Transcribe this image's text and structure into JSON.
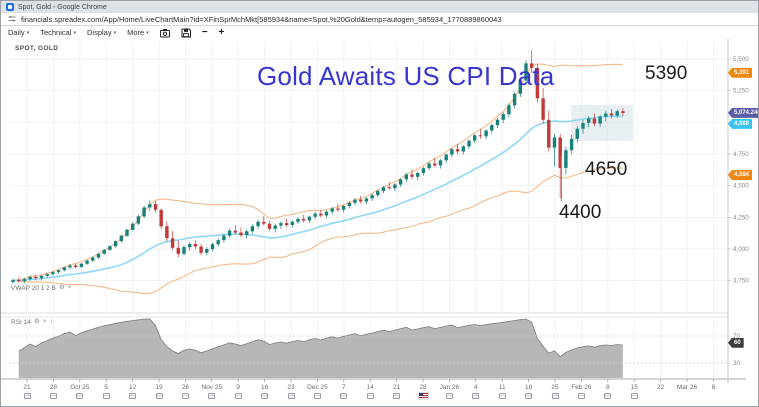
{
  "window": {
    "title": "Spot, Gold - Google Chrome"
  },
  "browser": {
    "url": "financials.spreadex.com/App/Home/LiveChartMain?id=XFinSprMchMkt[585934&name=Spot,%20Gold&temp=autogen_585934_1770889860043"
  },
  "toolbar": {
    "menus": [
      "Daily",
      "Technical",
      "Display",
      "More"
    ],
    "caret": "▾",
    "zoom_out": "−",
    "zoom_in": "+"
  },
  "icons": {
    "gear": "⚙",
    "close": "×",
    "up_arrow": "↑"
  },
  "chart": {
    "symbol_label": "SPOT, GOLD",
    "overlay_label": "VWAP 20 1 2 B",
    "rsi_label": "RSI 14",
    "annotations": {
      "headline": "Gold Awaits US CPI Data",
      "level_top": "5390",
      "level_mid": "4650",
      "level_low": "4400"
    },
    "price_axis": {
      "ticks": [
        "5,500",
        "5,250",
        "5,000",
        "4,750",
        "4,500",
        "4,250",
        "4,000",
        "3,750"
      ],
      "tick_values": [
        5500,
        5250,
        5000,
        4750,
        4500,
        4250,
        4000,
        3750
      ],
      "tags": [
        {
          "name": "upper-band-tag",
          "label": "5,391",
          "value": 5391,
          "color": "#f0860e"
        },
        {
          "name": "last-price-tag",
          "label": "5,074.240",
          "value": 5074.24,
          "color": "#5a5caa"
        },
        {
          "name": "mid-band-tag",
          "label": "4,988",
          "value": 4988,
          "color": "#38c4ef"
        },
        {
          "name": "lower-band-tag",
          "label": "4,584",
          "value": 4584,
          "color": "#f0860e"
        }
      ]
    },
    "time_axis": {
      "ticks": [
        "21",
        "28",
        "Oct 25",
        "5",
        "12",
        "19",
        "26",
        "Nov 25",
        "9",
        "16",
        "23",
        "Dec 25",
        "7",
        "14",
        "21",
        "28",
        "Jan 26",
        "4",
        "11",
        "18",
        "25",
        "Feb 26",
        "8",
        "15",
        "22",
        "Mar 26",
        "8"
      ],
      "flag_index": 15,
      "calendar_icon_last_index": 23
    },
    "rsi_axis": {
      "ticks": [
        "70",
        "30"
      ],
      "tick_values": [
        70,
        30
      ],
      "tag": {
        "label": "60",
        "value": 60,
        "color": "#3d3d3d"
      }
    },
    "colors": {
      "bull": "#17817a",
      "bear": "#c03a3a",
      "band": "#f4b47e",
      "mid_line": "#8ed8f4",
      "rsi_fill": "#b3b3b3",
      "rsi_stroke": "#7d7d7d",
      "headline": "#3737cf",
      "grid": "#ededed",
      "box": "#cfe0e8"
    }
  },
  "chart_data": {
    "type": "candlestick",
    "symbol": "SPOT, GOLD",
    "timeframe": "Daily",
    "price_axis_range": [
      3750,
      5500
    ],
    "x_tick_labels": [
      "21",
      "28",
      "Oct 25",
      "5",
      "12",
      "19",
      "26",
      "Nov 25",
      "9",
      "16",
      "23",
      "Dec 25",
      "7",
      "14",
      "21",
      "28",
      "Jan 26",
      "4",
      "11",
      "18",
      "25",
      "Feb 26",
      "8",
      "15",
      "22",
      "Mar 26",
      "8"
    ],
    "rsi_axis_ticks": [
      70,
      30
    ],
    "last_price": 5074.24,
    "upper_band": 5391,
    "middle_band": 4988,
    "lower_band": 4584,
    "annotation_texts": [
      "Gold Awaits US CPI Data",
      "5390",
      "4650",
      "4400"
    ],
    "indicators": [
      {
        "name": "VWAP Bands",
        "period": 20,
        "multiplier": 2
      },
      {
        "name": "RSI",
        "period": 14
      }
    ],
    "candles_ohlc": [
      [
        3740,
        3765,
        3725,
        3755
      ],
      [
        3755,
        3775,
        3735,
        3748
      ],
      [
        3748,
        3772,
        3730,
        3762
      ],
      [
        3762,
        3790,
        3750,
        3780
      ],
      [
        3780,
        3800,
        3758,
        3770
      ],
      [
        3770,
        3795,
        3752,
        3788
      ],
      [
        3788,
        3810,
        3776,
        3802
      ],
      [
        3802,
        3825,
        3790,
        3818
      ],
      [
        3818,
        3840,
        3805,
        3832
      ],
      [
        3832,
        3860,
        3825,
        3855
      ],
      [
        3855,
        3880,
        3840,
        3870
      ],
      [
        3870,
        3885,
        3845,
        3858
      ],
      [
        3858,
        3890,
        3852,
        3884
      ],
      [
        3884,
        3915,
        3875,
        3908
      ],
      [
        3908,
        3940,
        3898,
        3932
      ],
      [
        3932,
        3970,
        3922,
        3962
      ],
      [
        3962,
        4000,
        3955,
        3993
      ],
      [
        3993,
        4030,
        3985,
        4022
      ],
      [
        4022,
        4070,
        4010,
        4062
      ],
      [
        4062,
        4115,
        4050,
        4105
      ],
      [
        4105,
        4160,
        4095,
        4152
      ],
      [
        4152,
        4210,
        4140,
        4200
      ],
      [
        4200,
        4270,
        4190,
        4258
      ],
      [
        4258,
        4340,
        4245,
        4328
      ],
      [
        4328,
        4385,
        4300,
        4355
      ],
      [
        4355,
        4380,
        4290,
        4310
      ],
      [
        4310,
        4320,
        4160,
        4180
      ],
      [
        4180,
        4220,
        4060,
        4085
      ],
      [
        4085,
        4140,
        3990,
        4010
      ],
      [
        4010,
        4070,
        3935,
        3962
      ],
      [
        3962,
        4030,
        3950,
        4015
      ],
      [
        4015,
        4055,
        3985,
        4040
      ],
      [
        4040,
        4070,
        4000,
        4020
      ],
      [
        4020,
        4040,
        3952,
        3970
      ],
      [
        3970,
        4015,
        3950,
        4000
      ],
      [
        4000,
        4050,
        3980,
        4038
      ],
      [
        4038,
        4085,
        4020,
        4070
      ],
      [
        4070,
        4120,
        4050,
        4105
      ],
      [
        4105,
        4160,
        4090,
        4145
      ],
      [
        4145,
        4190,
        4115,
        4130
      ],
      [
        4130,
        4170,
        4095,
        4110
      ],
      [
        4110,
        4155,
        4085,
        4140
      ],
      [
        4140,
        4195,
        4120,
        4180
      ],
      [
        4180,
        4230,
        4160,
        4215
      ],
      [
        4215,
        4260,
        4185,
        4200
      ],
      [
        4200,
        4225,
        4140,
        4160
      ],
      [
        4160,
        4200,
        4130,
        4185
      ],
      [
        4185,
        4220,
        4160,
        4205
      ],
      [
        4205,
        4240,
        4175,
        4190
      ],
      [
        4190,
        4225,
        4170,
        4215
      ],
      [
        4215,
        4250,
        4195,
        4238
      ],
      [
        4238,
        4270,
        4210,
        4225
      ],
      [
        4225,
        4265,
        4205,
        4255
      ],
      [
        4255,
        4295,
        4235,
        4280
      ],
      [
        4280,
        4310,
        4250,
        4265
      ],
      [
        4265,
        4305,
        4245,
        4295
      ],
      [
        4295,
        4335,
        4275,
        4320
      ],
      [
        4320,
        4355,
        4295,
        4310
      ],
      [
        4310,
        4350,
        4290,
        4340
      ],
      [
        4340,
        4380,
        4320,
        4365
      ],
      [
        4365,
        4405,
        4345,
        4390
      ],
      [
        4390,
        4420,
        4360,
        4375
      ],
      [
        4375,
        4410,
        4355,
        4400
      ],
      [
        4400,
        4440,
        4380,
        4425
      ],
      [
        4425,
        4470,
        4410,
        4458
      ],
      [
        4458,
        4500,
        4440,
        4488
      ],
      [
        4488,
        4530,
        4465,
        4480
      ],
      [
        4480,
        4520,
        4455,
        4510
      ],
      [
        4510,
        4560,
        4490,
        4550
      ],
      [
        4550,
        4600,
        4530,
        4588
      ],
      [
        4588,
        4630,
        4550,
        4570
      ],
      [
        4570,
        4610,
        4540,
        4600
      ],
      [
        4600,
        4650,
        4580,
        4638
      ],
      [
        4638,
        4690,
        4620,
        4675
      ],
      [
        4675,
        4720,
        4645,
        4660
      ],
      [
        4660,
        4710,
        4635,
        4700
      ],
      [
        4700,
        4755,
        4680,
        4745
      ],
      [
        4745,
        4800,
        4725,
        4788
      ],
      [
        4788,
        4830,
        4750,
        4770
      ],
      [
        4770,
        4820,
        4745,
        4810
      ],
      [
        4810,
        4865,
        4790,
        4855
      ],
      [
        4855,
        4910,
        4835,
        4898
      ],
      [
        4898,
        4950,
        4870,
        4890
      ],
      [
        4890,
        4945,
        4865,
        4935
      ],
      [
        4935,
        4990,
        4910,
        4978
      ],
      [
        4978,
        5035,
        4955,
        5020
      ],
      [
        5020,
        5080,
        4995,
        5065
      ],
      [
        5065,
        5150,
        5040,
        5135
      ],
      [
        5135,
        5240,
        5110,
        5225
      ],
      [
        5225,
        5350,
        5200,
        5330
      ],
      [
        5330,
        5490,
        5300,
        5465
      ],
      [
        5465,
        5570,
        5390,
        5430
      ],
      [
        5430,
        5460,
        5160,
        5190
      ],
      [
        5190,
        5270,
        4990,
        5020
      ],
      [
        5020,
        5090,
        4770,
        4800
      ],
      [
        4800,
        4910,
        4650,
        4880
      ],
      [
        4880,
        4910,
        4400,
        4640
      ],
      [
        4640,
        4810,
        4590,
        4780
      ],
      [
        4780,
        4900,
        4750,
        4870
      ],
      [
        4870,
        4970,
        4840,
        4950
      ],
      [
        4950,
        5020,
        4910,
        4995
      ],
      [
        4995,
        5050,
        4960,
        5030
      ],
      [
        5030,
        5070,
        4970,
        4990
      ],
      [
        4990,
        5060,
        4965,
        5045
      ],
      [
        5045,
        5090,
        5010,
        5070
      ],
      [
        5070,
        5105,
        5030,
        5055
      ],
      [
        5055,
        5100,
        5035,
        5088
      ],
      [
        5088,
        5110,
        5050,
        5074
      ]
    ]
  }
}
